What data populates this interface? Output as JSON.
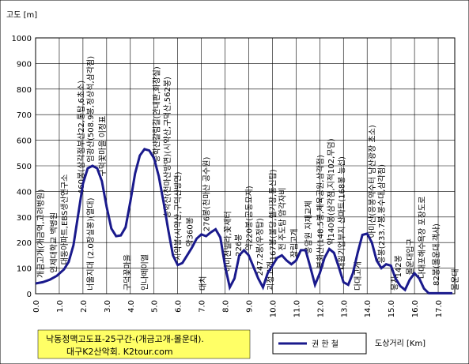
{
  "chart_data": {
    "type": "line",
    "ylabel": "고도 [m]",
    "xlabel": "도상거리 [Km]",
    "ylim": [
      0,
      1000
    ],
    "xlim": [
      0,
      17.7
    ],
    "y_ticks": [
      "0",
      "100",
      "200",
      "300",
      "400",
      "500",
      "600",
      "700",
      "800",
      "900",
      "1000"
    ],
    "x_ticks": [
      "0.0",
      "1.0",
      "2.0",
      "3.0",
      "4.0",
      "5.0",
      "6.0",
      "7.0",
      "8.0",
      "9.0",
      "10.0",
      "11.0",
      "12.0",
      "13.0",
      "14.0",
      "15.0",
      "16.0",
      "17.0"
    ],
    "grid": true,
    "legend": "bottom-right",
    "series": [
      {
        "name": "권  한  철",
        "color": "#1a1a8c",
        "x": [
          0.0,
          0.3,
          0.6,
          0.9,
          1.2,
          1.4,
          1.6,
          1.8,
          2.0,
          2.2,
          2.4,
          2.6,
          2.8,
          3.0,
          3.2,
          3.4,
          3.6,
          3.8,
          4.0,
          4.2,
          4.4,
          4.6,
          4.8,
          5.0,
          5.2,
          5.4,
          5.6,
          5.8,
          6.0,
          6.2,
          6.4,
          6.6,
          6.8,
          7.0,
          7.2,
          7.4,
          7.6,
          7.8,
          8.0,
          8.2,
          8.4,
          8.6,
          8.8,
          9.0,
          9.2,
          9.4,
          9.6,
          9.8,
          10.0,
          10.2,
          10.4,
          10.6,
          10.8,
          11.0,
          11.2,
          11.4,
          11.6,
          11.8,
          12.0,
          12.2,
          12.4,
          12.6,
          12.8,
          13.0,
          13.2,
          13.4,
          13.6,
          13.8,
          14.0,
          14.2,
          14.4,
          14.6,
          14.8,
          15.0,
          15.2,
          15.4,
          15.6,
          15.8,
          16.0,
          16.2,
          16.4,
          16.6,
          16.8,
          17.0,
          17.2,
          17.4,
          17.6
        ],
        "y": [
          40,
          45,
          55,
          70,
          95,
          125,
          190,
          310,
          430,
          490,
          500,
          490,
          440,
          340,
          255,
          225,
          228,
          260,
          360,
          470,
          540,
          565,
          560,
          530,
          460,
          360,
          250,
          150,
          112,
          120,
          150,
          180,
          215,
          232,
          225,
          240,
          252,
          220,
          110,
          25,
          60,
          150,
          170,
          150,
          105,
          60,
          25,
          80,
          110,
          140,
          150,
          130,
          115,
          130,
          170,
          170,
          105,
          35,
          80,
          140,
          175,
          160,
          105,
          45,
          35,
          80,
          160,
          230,
          235,
          200,
          130,
          100,
          115,
          110,
          60,
          30,
          15,
          55,
          80,
          60,
          20,
          2,
          2,
          2,
          2,
          2,
          2
        ]
      }
    ],
    "annotations": [
      {
        "x": 0.2,
        "text": "개금고개(개금역,고려병원)"
      },
      {
        "x": 0.75,
        "text": "인제대학교 백병원"
      },
      {
        "x": 1.2,
        "text": "대동아파트,EBS생산연구소"
      },
      {
        "x": 1.9,
        "text": "460봉(삼각점부산22,통탑,6초소)"
      },
      {
        "x": 2.3,
        "text": "엄광산(508.9봉,정상석,삼각점)"
      },
      {
        "x": 2.8,
        "text": "구덕꽃마을 이정표"
      },
      {
        "x": 5.1,
        "text": "승학산갈림길(안내판,화장실)"
      },
      {
        "x": 5.55,
        "text": "승학산(천마산방면)(시약산,구덕산,562봉)"
      },
      {
        "x": 6.0,
        "text": "시약봉(시약산,구덕산방면)"
      },
      {
        "x": 6.5,
        "text": "약360봉"
      },
      {
        "x": 7.2,
        "text": "276봉(천마산 공수원)"
      },
      {
        "x": 8.1,
        "text": "아미천빌라,꽃새터"
      },
      {
        "x": 8.55,
        "text": "226봉"
      },
      {
        "x": 9.0,
        "text": "약220봉(공동묘지)"
      },
      {
        "x": 9.45,
        "text": "247.2봉(우정탑)"
      },
      {
        "x": 10.0,
        "text": "167봉(불당,헬기장,통신탑)"
      },
      {
        "x": 10.4,
        "text": "전 주도탐 암각자비"
      },
      {
        "x": 10.9,
        "text": "장림고개"
      },
      {
        "x": 11.5,
        "text": "응암원 자재교체"
      },
      {
        "x": 12.0,
        "text": "봉화산(148.5봉,체육공원,삼각점)"
      },
      {
        "x": 12.45,
        "text": "약140봉(삼각점,지적102,무덤)"
      },
      {
        "x": 12.9,
        "text": "대원기업부지 산마트(168봉 능선)"
      },
      {
        "x": 14.2,
        "text": "아미산(응봉약수터 남산광장 초소)"
      },
      {
        "x": 14.6,
        "text": "응봉(233.7봉,봉수대,삼각점)"
      },
      {
        "x": 15.3,
        "text": "142봉"
      },
      {
        "x": 15.8,
        "text": "몰운대입구"
      },
      {
        "x": 16.3,
        "text": "다대포해수욕장 포장도로"
      },
      {
        "x": 16.9,
        "text": "82봉(몰운대 객사)"
      }
    ],
    "bottom_annotations": [
      {
        "x": 2.3,
        "text": "너울지대 (2.0장실봉)(열대)"
      },
      {
        "x": 3.85,
        "text": "구덕꽃마을"
      },
      {
        "x": 4.6,
        "text": "인나떼이엘"
      },
      {
        "x": 7.05,
        "text": "대치"
      },
      {
        "x": 9.9,
        "text": "괴정고개"
      },
      {
        "x": 13.6,
        "text": "다대고개"
      },
      {
        "x": 15.15,
        "text": "몽치"
      },
      {
        "x": 17.7,
        "text": "몰운대"
      }
    ]
  },
  "title_box": {
    "line1": "낙동정맥고도표-25구간-(개금고개-몰운대).",
    "line2": "대구K2산악회. K2tour.com"
  }
}
